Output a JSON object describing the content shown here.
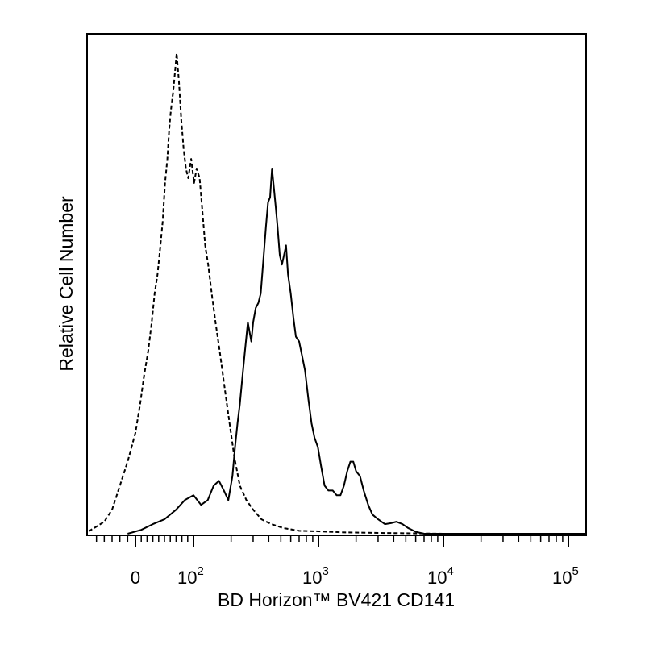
{
  "chart_data": {
    "type": "line",
    "title": "",
    "xlabel": "BD Horizon™ BV421 CD141",
    "ylabel": "Relative Cell Number",
    "x_scale": "biexponential",
    "xlim": [
      -60,
      250000
    ],
    "ylim": [
      0,
      100
    ],
    "x_ticks": [
      {
        "value": 0,
        "base": "0",
        "exp": ""
      },
      {
        "value": 100,
        "base": "10",
        "exp": "2"
      },
      {
        "value": 1000,
        "base": "10",
        "exp": "3"
      },
      {
        "value": 10000,
        "base": "10",
        "exp": "4"
      },
      {
        "value": 100000,
        "base": "10",
        "exp": "5"
      }
    ],
    "grid": false,
    "legend": "none",
    "series": [
      {
        "style": "dashed",
        "color": "#000000",
        "points": [
          [
            -60,
            0.5
          ],
          [
            -50,
            1.5
          ],
          [
            -40,
            2.5
          ],
          [
            -30,
            5
          ],
          [
            -20,
            10
          ],
          [
            -10,
            15
          ],
          [
            0,
            21
          ],
          [
            8,
            27
          ],
          [
            15,
            33
          ],
          [
            22,
            38
          ],
          [
            28,
            44
          ],
          [
            33,
            50
          ],
          [
            38,
            54
          ],
          [
            43,
            60
          ],
          [
            47,
            65
          ],
          [
            51,
            73
          ],
          [
            55,
            78
          ],
          [
            58,
            84
          ],
          [
            61,
            88
          ],
          [
            65,
            92
          ],
          [
            68,
            96
          ],
          [
            71,
            100
          ],
          [
            75,
            94
          ],
          [
            79,
            86
          ],
          [
            83,
            80
          ],
          [
            87,
            76
          ],
          [
            91,
            74
          ],
          [
            96,
            78
          ],
          [
            101,
            73
          ],
          [
            106,
            76
          ],
          [
            112,
            74
          ],
          [
            118,
            67
          ],
          [
            124,
            60
          ],
          [
            131,
            56
          ],
          [
            140,
            50
          ],
          [
            150,
            44
          ],
          [
            162,
            38
          ],
          [
            176,
            31
          ],
          [
            192,
            24
          ],
          [
            212,
            16
          ],
          [
            235,
            10
          ],
          [
            265,
            7
          ],
          [
            300,
            5
          ],
          [
            350,
            3
          ],
          [
            420,
            2
          ],
          [
            520,
            1.2
          ],
          [
            700,
            0.6
          ],
          [
            1000,
            0.5
          ],
          [
            1500,
            0.3
          ],
          [
            2500,
            0.2
          ],
          [
            5000,
            0.1
          ],
          [
            10000,
            0
          ]
        ]
      },
      {
        "style": "solid",
        "color": "#000000",
        "points": [
          [
            -10,
            0
          ],
          [
            10,
            0.8
          ],
          [
            30,
            2
          ],
          [
            50,
            3
          ],
          [
            70,
            5
          ],
          [
            85,
            7
          ],
          [
            100,
            8
          ],
          [
            115,
            6
          ],
          [
            130,
            7
          ],
          [
            145,
            10
          ],
          [
            160,
            11
          ],
          [
            175,
            9
          ],
          [
            190,
            7
          ],
          [
            205,
            12
          ],
          [
            215,
            18
          ],
          [
            225,
            23
          ],
          [
            235,
            27
          ],
          [
            245,
            32
          ],
          [
            258,
            38
          ],
          [
            272,
            44
          ],
          [
            290,
            40
          ],
          [
            300,
            44
          ],
          [
            315,
            47
          ],
          [
            330,
            48
          ],
          [
            345,
            50
          ],
          [
            360,
            56
          ],
          [
            380,
            64
          ],
          [
            395,
            69
          ],
          [
            410,
            70
          ],
          [
            425,
            76
          ],
          [
            440,
            72
          ],
          [
            455,
            68
          ],
          [
            470,
            64
          ],
          [
            490,
            58
          ],
          [
            510,
            56
          ],
          [
            530,
            58
          ],
          [
            550,
            60
          ],
          [
            570,
            54
          ],
          [
            600,
            50
          ],
          [
            630,
            45
          ],
          [
            660,
            41
          ],
          [
            700,
            40
          ],
          [
            740,
            37
          ],
          [
            780,
            34
          ],
          [
            830,
            28
          ],
          [
            880,
            23
          ],
          [
            930,
            20
          ],
          [
            990,
            18
          ],
          [
            1050,
            14
          ],
          [
            1120,
            10
          ],
          [
            1200,
            9
          ],
          [
            1300,
            9
          ],
          [
            1400,
            8
          ],
          [
            1500,
            8
          ],
          [
            1600,
            10
          ],
          [
            1700,
            13
          ],
          [
            1800,
            15
          ],
          [
            1900,
            15
          ],
          [
            2000,
            13
          ],
          [
            2150,
            12
          ],
          [
            2300,
            9
          ],
          [
            2500,
            6
          ],
          [
            2700,
            4
          ],
          [
            3000,
            3
          ],
          [
            3400,
            2
          ],
          [
            3800,
            2.2
          ],
          [
            4200,
            2.5
          ],
          [
            4700,
            2
          ],
          [
            5200,
            1.2
          ],
          [
            6000,
            0.4
          ],
          [
            7000,
            0
          ],
          [
            20000,
            0
          ],
          [
            100000,
            0
          ],
          [
            250000,
            0
          ]
        ]
      }
    ]
  }
}
